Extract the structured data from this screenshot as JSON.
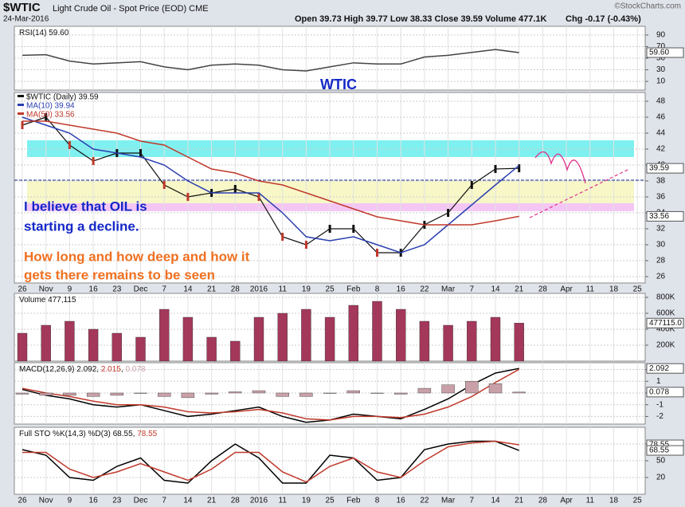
{
  "header": {
    "symbol": "$WTIC",
    "name": "Light Crude Oil - Spot Price (EOD) CME",
    "date": "24-Mar-2016",
    "quote": "Open 39.73  High 39.77  Low 38.33  Close 39.59  Volume 477.1K",
    "change": "Chg -0.17 (-0.43%)",
    "credit": "©StockCharts.com"
  },
  "chart_data": [
    {
      "type": "line",
      "ylim": [
        -5,
        105
      ],
      "yticks": [
        90,
        70,
        50,
        30,
        10
      ],
      "grid": true,
      "series": [
        {
          "name": "RSI(14) 59.60",
          "color": "#444444",
          "values": [
            55,
            56,
            45,
            40,
            42,
            44,
            35,
            30,
            38,
            40,
            38,
            30,
            28,
            35,
            42,
            40,
            40,
            52,
            55,
            60,
            65,
            59.6,
            null,
            null,
            null,
            null,
            null
          ]
        }
      ],
      "last_labels": [
        {
          "value": 59.6,
          "label": "59.60"
        }
      ],
      "annotations": [
        "WTIC"
      ]
    },
    {
      "type": "price",
      "ylim": [
        25.2,
        49.1
      ],
      "yticks": [
        26,
        28,
        30,
        32,
        34,
        36,
        38,
        40,
        42,
        44,
        46,
        48
      ],
      "grid": true,
      "categories": [
        "26",
        "Nov",
        "9",
        "16",
        "23",
        "Dec",
        "7",
        "14",
        "21",
        "28",
        "2016",
        "11",
        "19",
        "25",
        "Feb",
        "8",
        "16",
        "22",
        "Mar",
        "7",
        "14",
        "21",
        "28",
        "Apr",
        "11",
        "18",
        "25"
      ],
      "zones": [
        {
          "from": 41,
          "to": 43.1,
          "color": "#7ff0f0"
        },
        {
          "from": 35,
          "to": 38,
          "color": "#f7f7c8"
        },
        {
          "from": 34.2,
          "to": 35.2,
          "color": "#f4c6f4"
        }
      ],
      "level": 38.1,
      "series": [
        {
          "name": "$WTIC (Daily) 39.59",
          "color": "#111111",
          "values": [
            45,
            46,
            42.5,
            40.5,
            41.5,
            41.5,
            37.5,
            36,
            36.5,
            37,
            36,
            31,
            30,
            32,
            32,
            29,
            29,
            32.5,
            34,
            37.5,
            39.5,
            39.59,
            null,
            null,
            null,
            null,
            null
          ]
        },
        {
          "name": "MA(10) 39.94",
          "color": "#2a3fb0",
          "values": [
            46,
            45,
            44,
            42,
            41.5,
            41,
            40,
            38,
            36.5,
            36.5,
            36.5,
            34,
            31,
            30.5,
            31,
            30,
            29,
            30,
            32.5,
            35,
            37.5,
            39.94,
            null,
            null,
            null,
            null,
            null
          ]
        },
        {
          "name": "MA(50) 33.56",
          "color": "#c0392b",
          "values": [
            45.5,
            45.5,
            45,
            44.5,
            44,
            43,
            42.5,
            41,
            39.5,
            39,
            38,
            37.5,
            36.5,
            35.5,
            34.5,
            33.5,
            33,
            32.5,
            32.5,
            32.5,
            33,
            33.56,
            null,
            null,
            null,
            null,
            null
          ]
        }
      ],
      "last_labels": [
        {
          "value": 39.59,
          "label": "39.59"
        },
        {
          "value": 33.56,
          "label": "33.56"
        }
      ],
      "annotations": [
        "I believe that OIL is",
        "starting a decline.",
        "How long and how deep and how it",
        "gets there remains to be seen"
      ]
    },
    {
      "type": "bar",
      "ylim": [
        0,
        850000
      ],
      "yticks": [
        {
          "value": 800000,
          "label": "800K"
        },
        {
          "value": 600000,
          "label": "600K"
        },
        {
          "value": 400000,
          "label": "400K"
        },
        {
          "value": 200000,
          "label": "200K"
        }
      ],
      "grid": true,
      "series": [
        {
          "name": "Volume 477,115",
          "color": "#a3385a",
          "values": [
            350000,
            450000,
            500000,
            400000,
            350000,
            300000,
            650000,
            550000,
            300000,
            250000,
            550000,
            600000,
            650000,
            550000,
            700000,
            750000,
            650000,
            500000,
            450000,
            500000,
            550000,
            477115,
            null,
            null,
            null,
            null,
            null
          ]
        }
      ],
      "last_labels": [
        {
          "value": 477115,
          "label": "477115.0"
        }
      ]
    },
    {
      "type": "macd",
      "ylim": [
        -2.65,
        2.58
      ],
      "yticks": [
        2,
        1,
        0,
        -1,
        -2
      ],
      "grid": true,
      "series": [
        {
          "name": "MACD(12,26,9) 2.092",
          "color": "#000000",
          "values": [
            0.3,
            -0.2,
            -0.5,
            -1,
            -1.2,
            -1,
            -1.5,
            -2,
            -1.8,
            -1.5,
            -1.2,
            -2,
            -2.5,
            -2.3,
            -1.8,
            -2,
            -2.2,
            -1.4,
            -0.5,
            0.7,
            1.7,
            2.092,
            null,
            null,
            null,
            null,
            null
          ]
        },
        {
          "name": "2.015",
          "color": "#c0392b",
          "values": [
            0.4,
            0,
            -0.3,
            -0.7,
            -1,
            -1,
            -1.2,
            -1.6,
            -1.7,
            -1.6,
            -1.4,
            -1.7,
            -2.2,
            -2.3,
            -2,
            -2,
            -2.1,
            -1.8,
            -1.2,
            -0.3,
            0.9,
            2.015,
            null,
            null,
            null,
            null,
            null
          ]
        },
        {
          "name": "0.078",
          "color": "#c9a0a8",
          "kind": "histogram",
          "values": [
            -0.1,
            -0.2,
            -0.2,
            -0.3,
            -0.2,
            0,
            -0.3,
            -0.4,
            -0.1,
            0.1,
            0.2,
            -0.3,
            -0.3,
            0,
            0.2,
            0,
            -0.1,
            0.4,
            0.7,
            1,
            0.8,
            0.078,
            null,
            null,
            null,
            null,
            null
          ]
        }
      ],
      "last_labels": [
        {
          "value": 2.092,
          "label": "2.092"
        },
        {
          "value": 0.078,
          "label": "0.078"
        }
      ]
    },
    {
      "type": "line",
      "ylim": [
        -10,
        110
      ],
      "yticks": [
        80,
        50,
        20
      ],
      "grid": true,
      "series": [
        {
          "name": "Full STO %K(14,3) %D(3) 68.55",
          "color": "#000000",
          "values": [
            70,
            60,
            20,
            15,
            40,
            55,
            15,
            10,
            50,
            80,
            55,
            10,
            10,
            60,
            55,
            15,
            20,
            70,
            80,
            85,
            85,
            68.55,
            null,
            null,
            null,
            null,
            null
          ]
        },
        {
          "name": "78.55",
          "color": "#c0392b",
          "values": [
            65,
            65,
            35,
            20,
            30,
            45,
            30,
            15,
            35,
            65,
            65,
            30,
            12,
            40,
            55,
            30,
            20,
            50,
            75,
            82,
            85,
            78.55,
            null,
            null,
            null,
            null,
            null
          ]
        }
      ],
      "last_labels": [
        {
          "value": 78.55,
          "label": "78.55"
        },
        {
          "value": 68.55,
          "label": "68.55"
        }
      ]
    }
  ]
}
